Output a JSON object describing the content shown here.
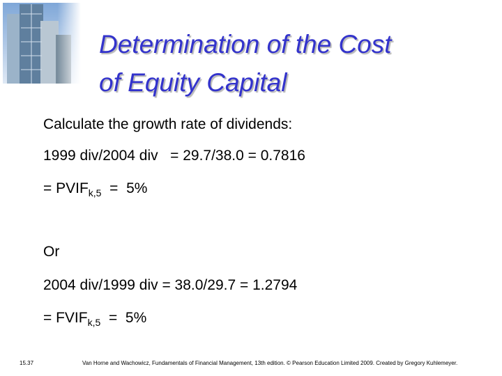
{
  "header": {
    "title_lines": [
      "Determination of the Cost",
      "of Equity Capital"
    ]
  },
  "body": {
    "intro": "Calculate the growth rate of dividends:",
    "line1": "1999 div/2004 div   = 29.7/38.0 = 0.7816",
    "line2": {
      "prefix": "= PVIF",
      "subscript": "k,5",
      "suffix": "  =  5%"
    },
    "or": "Or",
    "line3": "2004 div/1999 div = 38.0/29.7 = 1.2794",
    "line4": {
      "prefix": "= FVIF",
      "subscript": "k,5",
      "suffix": "  =  5%"
    }
  },
  "footer": {
    "slide_number": "15.37",
    "credit": "Van Horne and Wachowicz, Fundamentals of Financial Management, 13th edition. © Pearson Education Limited 2009. Created by Gregory Kuhlemeyer."
  }
}
